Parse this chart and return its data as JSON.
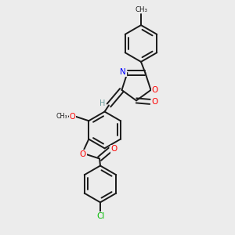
{
  "background_color": "#ececec",
  "bond_color": "#1a1a1a",
  "bond_lw": 1.4,
  "atom_colors": {
    "N": "#0000ff",
    "O": "#ff0000",
    "Cl": "#00bb00",
    "H": "#6fa0a0",
    "C": "#1a1a1a"
  },
  "ring_r": 0.078,
  "inner_shrink": 0.18
}
